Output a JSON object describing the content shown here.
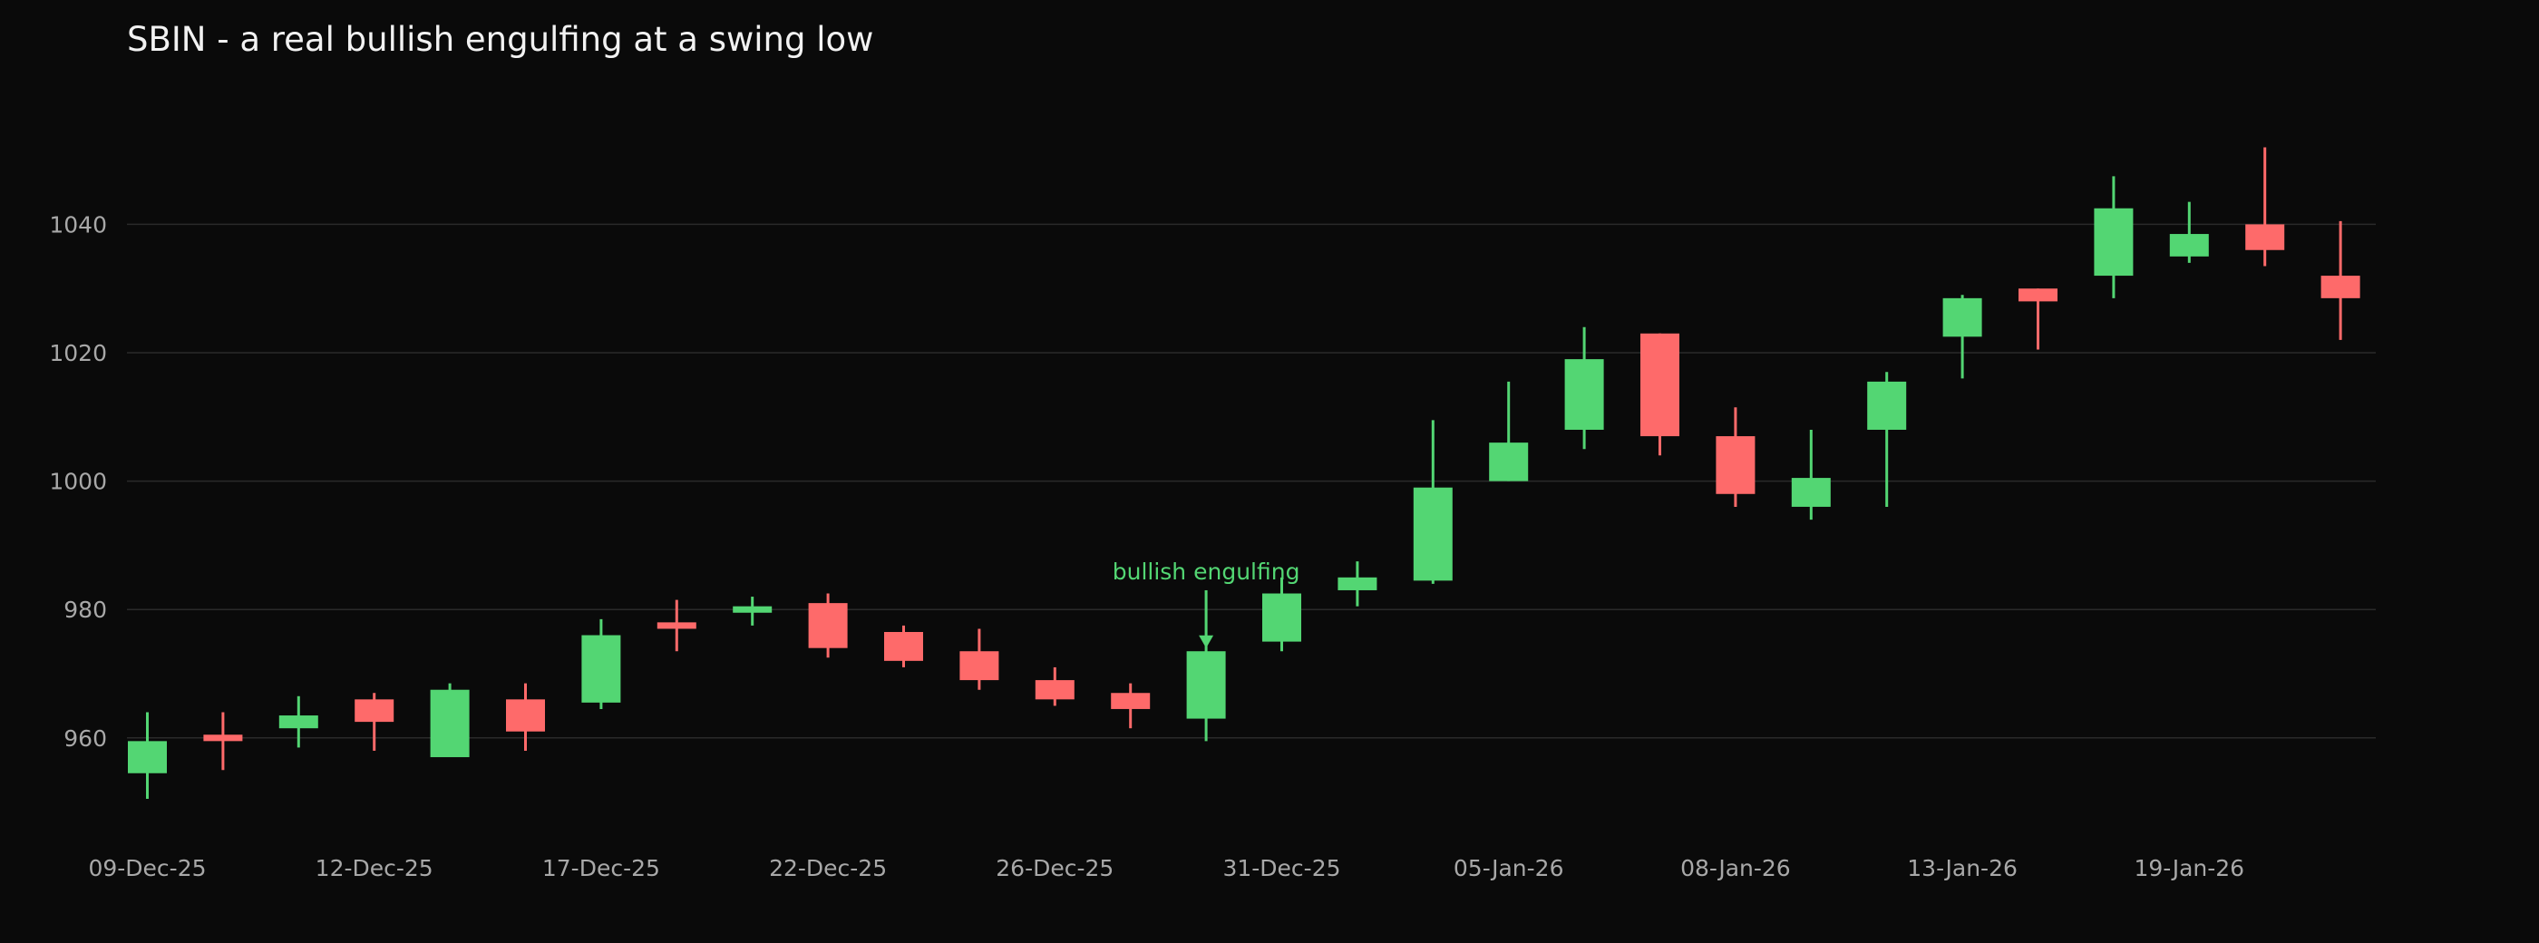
{
  "chart_data": {
    "type": "candlestick",
    "title": "SBIN - a real bullish engulfing at a swing low",
    "xlabel": "",
    "ylabel": "",
    "ylim": [
      945,
      1058
    ],
    "y_ticks": [
      960,
      980,
      1000,
      1020,
      1040
    ],
    "grid": true,
    "legend": "none",
    "x_tick_labels": [
      "09-Dec-25",
      "12-Dec-25",
      "17-Dec-25",
      "22-Dec-25",
      "26-Dec-25",
      "31-Dec-25",
      "05-Jan-26",
      "08-Jan-26",
      "13-Jan-26",
      "19-Jan-26"
    ],
    "x_tick_every": 3,
    "colors": {
      "up": "#53d673",
      "down": "#fe6a6a",
      "grid": "#2a2a2a",
      "background": "#0a0a0a",
      "annotation": "#53d673"
    },
    "candles": [
      {
        "open": 954.5,
        "high": 964.0,
        "low": 950.5,
        "close": 959.5
      },
      {
        "open": 960.5,
        "high": 964.0,
        "low": 955.0,
        "close": 959.5
      },
      {
        "open": 961.5,
        "high": 966.5,
        "low": 958.5,
        "close": 963.5
      },
      {
        "open": 966.0,
        "high": 967.0,
        "low": 958.0,
        "close": 962.5
      },
      {
        "open": 957.0,
        "high": 968.5,
        "low": 957.0,
        "close": 967.5
      },
      {
        "open": 966.0,
        "high": 968.5,
        "low": 958.0,
        "close": 961.0
      },
      {
        "open": 965.5,
        "high": 978.5,
        "low": 964.5,
        "close": 976.0
      },
      {
        "open": 978.0,
        "high": 981.5,
        "low": 973.5,
        "close": 977.0
      },
      {
        "open": 979.5,
        "high": 982.0,
        "low": 977.5,
        "close": 980.5
      },
      {
        "open": 981.0,
        "high": 982.5,
        "low": 972.5,
        "close": 974.0
      },
      {
        "open": 976.5,
        "high": 977.5,
        "low": 971.0,
        "close": 972.0
      },
      {
        "open": 973.5,
        "high": 977.0,
        "low": 967.5,
        "close": 969.0
      },
      {
        "open": 969.0,
        "high": 971.0,
        "low": 965.0,
        "close": 966.0
      },
      {
        "open": 967.0,
        "high": 968.5,
        "low": 961.5,
        "close": 964.5
      },
      {
        "open": 963.0,
        "high": 983.0,
        "low": 959.5,
        "close": 973.5
      },
      {
        "open": 975.0,
        "high": 985.0,
        "low": 973.5,
        "close": 982.5
      },
      {
        "open": 983.0,
        "high": 987.5,
        "low": 980.5,
        "close": 985.0
      },
      {
        "open": 984.5,
        "high": 1009.5,
        "low": 984.0,
        "close": 999.0
      },
      {
        "open": 1000.0,
        "high": 1015.5,
        "low": 1000.0,
        "close": 1006.0
      },
      {
        "open": 1008.0,
        "high": 1024.0,
        "low": 1005.0,
        "close": 1019.0
      },
      {
        "open": 1023.0,
        "high": 1023.0,
        "low": 1004.0,
        "close": 1007.0
      },
      {
        "open": 1007.0,
        "high": 1011.5,
        "low": 996.0,
        "close": 998.0
      },
      {
        "open": 996.0,
        "high": 1008.0,
        "low": 994.0,
        "close": 1000.5
      },
      {
        "open": 1008.0,
        "high": 1017.0,
        "low": 996.0,
        "close": 1015.5
      },
      {
        "open": 1022.5,
        "high": 1029.0,
        "low": 1016.0,
        "close": 1028.5
      },
      {
        "open": 1030.0,
        "high": 1030.0,
        "low": 1020.5,
        "close": 1028.0
      },
      {
        "open": 1032.0,
        "high": 1047.5,
        "low": 1028.5,
        "close": 1042.5
      },
      {
        "open": 1035.0,
        "high": 1043.5,
        "low": 1034.0,
        "close": 1038.5
      },
      {
        "open": 1040.0,
        "high": 1052.0,
        "low": 1033.5,
        "close": 1036.0
      },
      {
        "open": 1032.0,
        "high": 1040.5,
        "low": 1022.0,
        "close": 1028.5
      }
    ],
    "annotations": [
      {
        "text": "bullish engulfing",
        "candle_index": 14,
        "arrow": true,
        "arrow_from_y": 983.0,
        "arrow_to_y": 974.0
      }
    ]
  }
}
